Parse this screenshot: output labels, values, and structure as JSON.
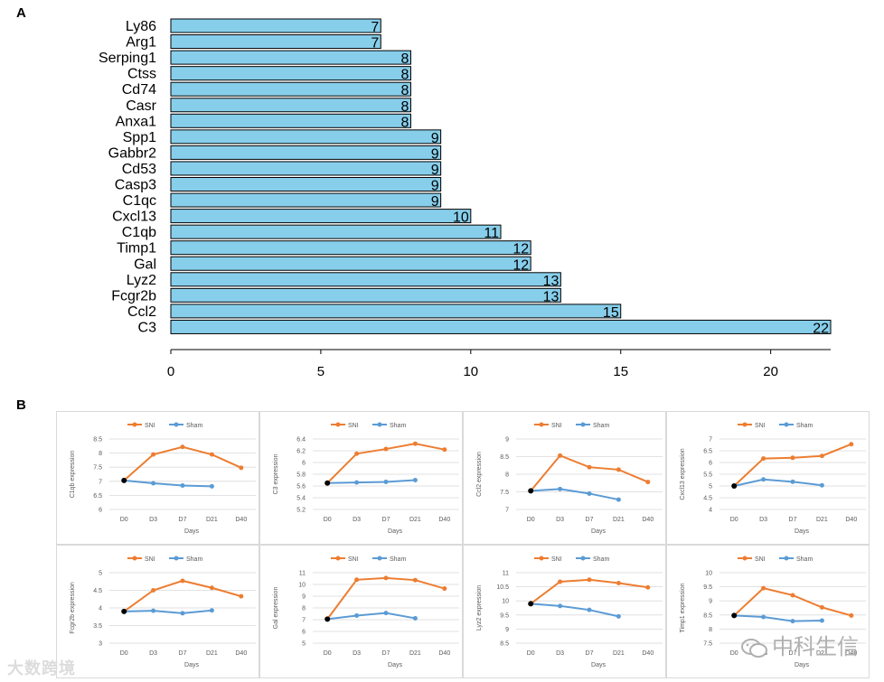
{
  "figure": {
    "panel_a_label": "A",
    "panel_b_label": "B"
  },
  "chart_data": [
    {
      "type": "bar",
      "orientation": "horizontal",
      "panel": "A",
      "categories": [
        "Ly86",
        "Arg1",
        "Serping1",
        "Ctss",
        "Cd74",
        "Casr",
        "Anxa1",
        "Spp1",
        "Gabbr2",
        "Cd53",
        "Casp3",
        "C1qc",
        "Cxcl13",
        "C1qb",
        "Timp1",
        "Gal",
        "Lyz2",
        "Fcgr2b",
        "Ccl2",
        "C3"
      ],
      "values": [
        7,
        7,
        8,
        8,
        8,
        8,
        8,
        9,
        9,
        9,
        9,
        9,
        10,
        11,
        12,
        12,
        13,
        13,
        15,
        22
      ],
      "xticks": [
        0,
        5,
        10,
        15,
        20
      ],
      "xlim": [
        0,
        22.5
      ],
      "bar_color": "#87CEEB",
      "title": "",
      "xlabel": "",
      "ylabel": ""
    },
    {
      "type": "line",
      "panel": "B",
      "ylabel": "C1qb expression",
      "xlabel": "Days",
      "x": [
        "D0",
        "D3",
        "D7",
        "D21",
        "D40"
      ],
      "yticks": [
        "6",
        "6.5",
        "7",
        "7.5",
        "8",
        "8.5"
      ],
      "ylim": [
        6,
        8.5
      ],
      "series": [
        {
          "name": "SNI",
          "color": "#ED7D31",
          "values": [
            7.03,
            7.95,
            8.22,
            7.95,
            7.48
          ]
        },
        {
          "name": "Sham",
          "color": "#5B9BD5",
          "values": [
            7.03,
            6.93,
            6.85,
            6.82,
            null
          ]
        }
      ]
    },
    {
      "type": "line",
      "panel": "B",
      "ylabel": "C3 expression",
      "xlabel": "Days",
      "x": [
        "D0",
        "D3",
        "D7",
        "D21",
        "D40"
      ],
      "yticks": [
        "5.2",
        "5.4",
        "5.6",
        "5.8",
        "6",
        "6.2",
        "6.4"
      ],
      "ylim": [
        5.2,
        6.4
      ],
      "series": [
        {
          "name": "SNI",
          "color": "#ED7D31",
          "values": [
            5.65,
            6.15,
            6.23,
            6.32,
            6.22
          ]
        },
        {
          "name": "Sham",
          "color": "#5B9BD5",
          "values": [
            5.65,
            5.66,
            5.67,
            5.7,
            null
          ]
        }
      ]
    },
    {
      "type": "line",
      "panel": "B",
      "ylabel": "Ccl2 expression",
      "xlabel": "Days",
      "x": [
        "D0",
        "D3",
        "D7",
        "D21",
        "D40"
      ],
      "yticks": [
        "7",
        "7.5",
        "8",
        "8.5",
        "9"
      ],
      "ylim": [
        7,
        9
      ],
      "series": [
        {
          "name": "SNI",
          "color": "#ED7D31",
          "values": [
            7.53,
            8.53,
            8.2,
            8.13,
            7.78
          ]
        },
        {
          "name": "Sham",
          "color": "#5B9BD5",
          "values": [
            7.53,
            7.58,
            7.45,
            7.28,
            null
          ]
        }
      ]
    },
    {
      "type": "line",
      "panel": "B",
      "ylabel": "Cxcl13 expression",
      "xlabel": "Days",
      "x": [
        "D0",
        "D3",
        "D7",
        "D21",
        "D40"
      ],
      "yticks": [
        "4",
        "4.5",
        "5",
        "5.5",
        "6",
        "6.5",
        "7"
      ],
      "ylim": [
        4,
        7
      ],
      "series": [
        {
          "name": "SNI",
          "color": "#ED7D31",
          "values": [
            5.0,
            6.17,
            6.2,
            6.28,
            6.78
          ]
        },
        {
          "name": "Sham",
          "color": "#5B9BD5",
          "values": [
            5.0,
            5.28,
            5.18,
            5.03,
            null
          ]
        }
      ]
    },
    {
      "type": "line",
      "panel": "B",
      "ylabel": "Fcgr2b expression",
      "xlabel": "Days",
      "x": [
        "D0",
        "D3",
        "D7",
        "D21",
        "D40"
      ],
      "yticks": [
        "3",
        "3.5",
        "4",
        "4.5",
        "5"
      ],
      "ylim": [
        3,
        5
      ],
      "series": [
        {
          "name": "SNI",
          "color": "#ED7D31",
          "values": [
            3.9,
            4.5,
            4.77,
            4.57,
            4.33
          ]
        },
        {
          "name": "Sham",
          "color": "#5B9BD5",
          "values": [
            3.9,
            3.92,
            3.85,
            3.93,
            null
          ]
        }
      ]
    },
    {
      "type": "line",
      "panel": "B",
      "ylabel": "Gal expression",
      "xlabel": "Days",
      "x": [
        "D0",
        "D3",
        "D7",
        "D21",
        "D40"
      ],
      "yticks": [
        "5",
        "6",
        "7",
        "8",
        "9",
        "10",
        "11"
      ],
      "ylim": [
        5,
        11
      ],
      "series": [
        {
          "name": "SNI",
          "color": "#ED7D31",
          "values": [
            7.05,
            10.4,
            10.55,
            10.37,
            9.65
          ]
        },
        {
          "name": "Sham",
          "color": "#5B9BD5",
          "values": [
            7.05,
            7.35,
            7.57,
            7.12,
            null
          ]
        }
      ]
    },
    {
      "type": "line",
      "panel": "B",
      "ylabel": "Lyz2 expression",
      "xlabel": "Days",
      "x": [
        "D0",
        "D3",
        "D7",
        "D21",
        "D40"
      ],
      "yticks": [
        "8.5",
        "9",
        "9.5",
        "10",
        "10.5",
        "11"
      ],
      "ylim": [
        8.5,
        11
      ],
      "series": [
        {
          "name": "SNI",
          "color": "#ED7D31",
          "values": [
            9.9,
            10.68,
            10.75,
            10.63,
            10.48
          ]
        },
        {
          "name": "Sham",
          "color": "#5B9BD5",
          "values": [
            9.9,
            9.82,
            9.68,
            9.45,
            null
          ]
        }
      ]
    },
    {
      "type": "line",
      "panel": "B",
      "ylabel": "Timp1 expression",
      "xlabel": "Days",
      "x": [
        "D0",
        "D3",
        "D7",
        "D21",
        "D40"
      ],
      "yticks": [
        "7.5",
        "8",
        "8.5",
        "9",
        "9.5",
        "10"
      ],
      "ylim": [
        7.5,
        10
      ],
      "series": [
        {
          "name": "SNI",
          "color": "#ED7D31",
          "values": [
            8.48,
            9.45,
            9.2,
            8.77,
            8.48
          ]
        },
        {
          "name": "Sham",
          "color": "#5B9BD5",
          "values": [
            8.48,
            8.43,
            8.28,
            8.3,
            null
          ]
        }
      ]
    }
  ],
  "watermarks": {
    "left": "大数跨境",
    "right": "中科生信"
  }
}
